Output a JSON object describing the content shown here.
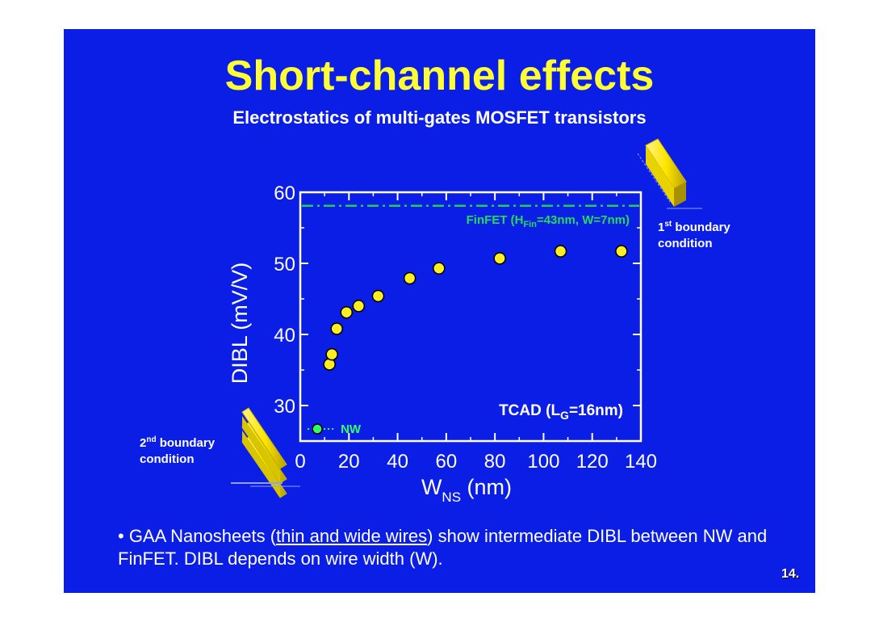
{
  "slide": {
    "title": "Short-channel effects",
    "subtitle": "Electrostatics of multi-gates MOSFET transistors",
    "page_number": "14.",
    "bullet": {
      "marker": "•",
      "text_1": " GAA Nanosheets (",
      "underlined": "thin and wide wires",
      "text_2": ") show intermediate DIBL between NW and FinFET. DIBL depends on wire width (W)."
    },
    "boundary_1": {
      "sup": "st",
      "pre": "1",
      "line1_rest": " boundary",
      "line2": "condition"
    },
    "boundary_2": {
      "sup": "nd",
      "pre": "2",
      "line1_rest": " boundary",
      "line2": "condition"
    },
    "colors": {
      "background": "#0a1ee6",
      "title": "#ffff33",
      "points": "#ffee22",
      "finfet": "#22cc55",
      "nw": "#33ff66"
    }
  },
  "chart_data": {
    "type": "scatter",
    "x_label": {
      "main": "W",
      "sub": "NS",
      "rest": " (nm)"
    },
    "y_label": "DIBL (mV/V)",
    "xlim": [
      0,
      140
    ],
    "ylim": [
      25,
      60
    ],
    "x_ticks": [
      0,
      20,
      40,
      60,
      80,
      100,
      120,
      140
    ],
    "y_ticks": [
      30,
      40,
      50,
      60
    ],
    "series": [
      {
        "points": [
          {
            "x": 12,
            "y": 35.8
          },
          {
            "x": 13,
            "y": 37.2
          },
          {
            "x": 15,
            "y": 40.8
          },
          {
            "x": 19,
            "y": 43.1
          },
          {
            "x": 24,
            "y": 44.0
          },
          {
            "x": 32,
            "y": 45.4
          },
          {
            "x": 45,
            "y": 47.9
          },
          {
            "x": 57,
            "y": 49.3
          },
          {
            "x": 82,
            "y": 50.7
          },
          {
            "x": 107,
            "y": 51.7
          },
          {
            "x": 132,
            "y": 51.7
          }
        ]
      }
    ],
    "finfet_reference": {
      "y": 58.1,
      "label_pre": "FinFET (H",
      "label_sub": "Fin",
      "label_post": "=43nm, W=7nm)"
    },
    "nw_reference": {
      "x": 7,
      "y": 26.7,
      "label": "NW"
    },
    "tcad_annotation": {
      "pre": "TCAD (L",
      "sub": "G",
      "post": "=16nm)"
    }
  }
}
